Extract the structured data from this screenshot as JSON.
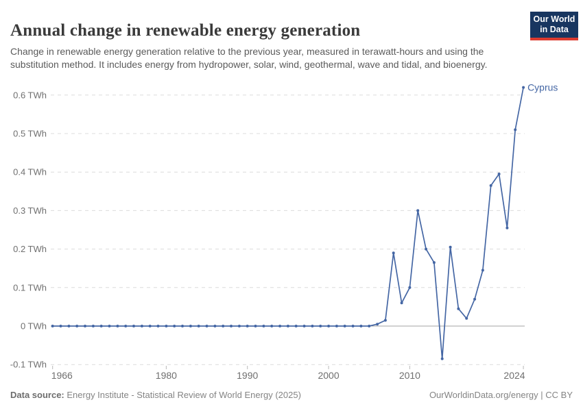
{
  "header": {
    "title": "Annual change in renewable energy generation",
    "subtitle": "Change in renewable energy generation relative to the previous year, measured in terawatt-hours and using the substitution method. It includes energy from hydropower, solar, wind, geothermal, wave and tidal, and bioenergy.",
    "logo": {
      "line1": "Our World",
      "line2": "in Data"
    }
  },
  "chart_data": {
    "type": "line",
    "title": "Annual change in renewable energy generation",
    "unit": "TWh",
    "series_label": "Cyprus",
    "x": [
      1966,
      1967,
      1968,
      1969,
      1970,
      1971,
      1972,
      1973,
      1974,
      1975,
      1976,
      1977,
      1978,
      1979,
      1980,
      1981,
      1982,
      1983,
      1984,
      1985,
      1986,
      1987,
      1988,
      1989,
      1990,
      1991,
      1992,
      1993,
      1994,
      1995,
      1996,
      1997,
      1998,
      1999,
      2000,
      2001,
      2002,
      2003,
      2004,
      2005,
      2006,
      2007,
      2008,
      2009,
      2010,
      2011,
      2012,
      2013,
      2014,
      2015,
      2016,
      2017,
      2018,
      2019,
      2020,
      2021,
      2022,
      2023,
      2024
    ],
    "values": [
      0,
      0,
      0,
      0,
      0,
      0,
      0,
      0,
      0,
      0,
      0,
      0,
      0,
      0,
      0,
      0,
      0,
      0,
      0,
      0,
      0,
      0,
      0,
      0,
      0,
      0,
      0,
      0,
      0,
      0,
      0,
      0,
      0,
      0,
      0,
      0,
      0,
      0,
      0,
      0,
      0.005,
      0.015,
      0.19,
      0.06,
      0.1,
      0.3,
      0.2,
      0.165,
      -0.085,
      0.205,
      0.045,
      0.02,
      0.07,
      0.145,
      0.365,
      0.395,
      0.255,
      0.51,
      0.62
    ],
    "y_ticks": [
      -0.1,
      0,
      0.1,
      0.2,
      0.3,
      0.4,
      0.5,
      0.6
    ],
    "y_tick_labels": [
      "-0.1 TWh",
      "0 TWh",
      "0.1 TWh",
      "0.2 TWh",
      "0.3 TWh",
      "0.4 TWh",
      "0.5 TWh",
      "0.6 TWh"
    ],
    "x_ticks": [
      1966,
      1980,
      1990,
      2000,
      2010,
      2024
    ],
    "x_tick_labels": [
      "1966",
      "1980",
      "1990",
      "2000",
      "2010",
      "2024"
    ],
    "xlim": [
      1966,
      2024
    ],
    "ylim": [
      -0.1,
      0.62
    ],
    "grid": "horizontal-dashed",
    "legend_position": "end-of-line-label",
    "colors": {
      "line": "#4466a4",
      "grid": "#dcdcdc",
      "zero_line": "#a3a3a3",
      "tick_label": "#6f6f6f",
      "axis_tick": "#b8b8b8"
    }
  },
  "footer": {
    "source_label": "Data source:",
    "source_text": "Energy Institute - Statistical Review of World Energy (2025)",
    "right_text": "OurWorldinData.org/energy | CC BY"
  }
}
